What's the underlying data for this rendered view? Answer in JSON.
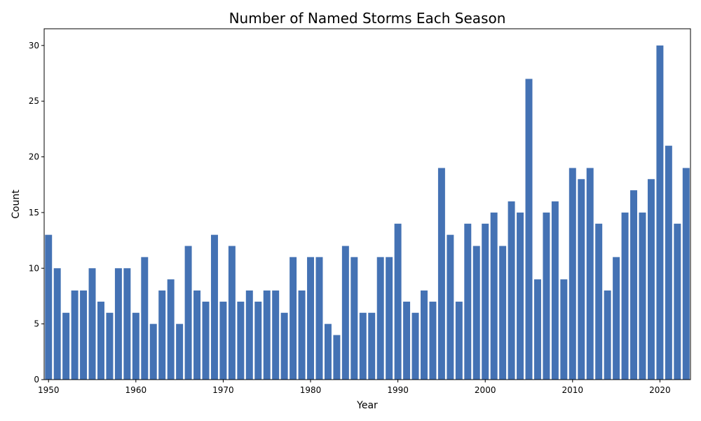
{
  "chart_data": {
    "type": "bar",
    "title": "Number of Named Storms Each Season",
    "xlabel": "Year",
    "ylabel": "Count",
    "bar_color": "#4472b4",
    "x": [
      1950,
      1951,
      1952,
      1953,
      1954,
      1955,
      1956,
      1957,
      1958,
      1959,
      1960,
      1961,
      1962,
      1963,
      1964,
      1965,
      1966,
      1967,
      1968,
      1969,
      1970,
      1971,
      1972,
      1973,
      1974,
      1975,
      1976,
      1977,
      1978,
      1979,
      1980,
      1981,
      1982,
      1983,
      1984,
      1985,
      1986,
      1987,
      1988,
      1989,
      1990,
      1991,
      1992,
      1993,
      1994,
      1995,
      1996,
      1997,
      1998,
      1999,
      2000,
      2001,
      2002,
      2003,
      2004,
      2005,
      2006,
      2007,
      2008,
      2009,
      2010,
      2011,
      2012,
      2013,
      2014,
      2015,
      2016,
      2017,
      2018,
      2019,
      2020,
      2021,
      2022,
      2023
    ],
    "values": [
      13,
      10,
      6,
      8,
      8,
      10,
      7,
      6,
      10,
      10,
      6,
      11,
      5,
      8,
      9,
      5,
      12,
      8,
      7,
      13,
      7,
      12,
      7,
      8,
      7,
      8,
      8,
      6,
      11,
      8,
      11,
      11,
      5,
      4,
      12,
      11,
      6,
      6,
      11,
      11,
      14,
      7,
      6,
      8,
      7,
      19,
      13,
      7,
      14,
      12,
      14,
      15,
      12,
      16,
      15,
      27,
      9,
      15,
      16,
      9,
      19,
      18,
      19,
      14,
      8,
      11,
      15,
      17,
      15,
      18,
      30,
      21,
      14,
      19
    ],
    "xlim": [
      1949.5,
      2023.5
    ],
    "ylim": [
      0,
      31.5
    ],
    "xticks": [
      1950,
      1960,
      1970,
      1980,
      1990,
      2000,
      2010,
      2020
    ],
    "yticks": [
      0,
      5,
      10,
      15,
      20,
      25,
      30
    ],
    "grid": false,
    "legend": "none"
  }
}
